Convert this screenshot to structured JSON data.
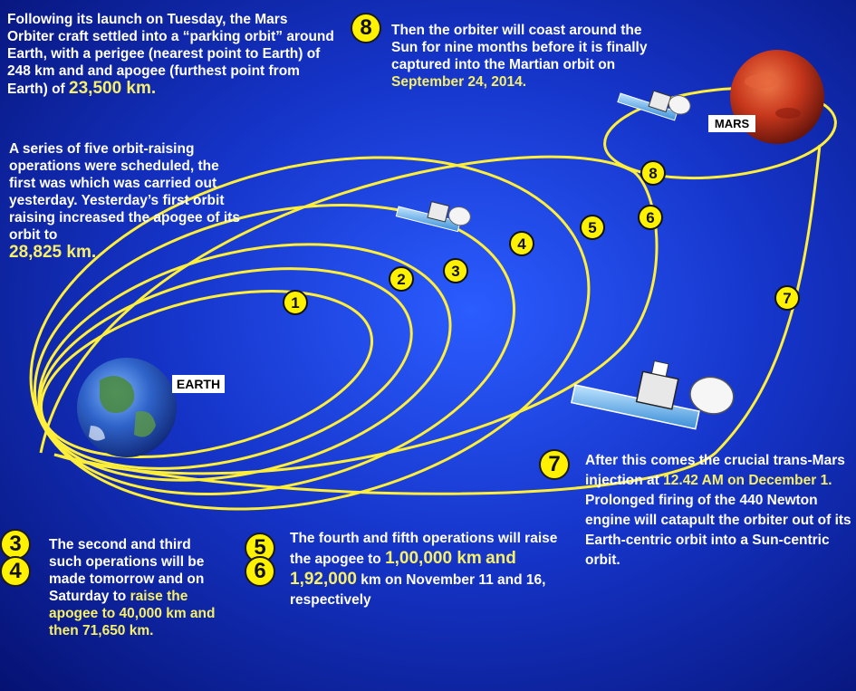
{
  "labels": {
    "earth": "EARTH",
    "mars": "MARS"
  },
  "orbit_markers": [
    "1",
    "2",
    "3",
    "4",
    "5",
    "6",
    "8",
    "7"
  ],
  "block_parking": {
    "text": "Following its launch on Tuesday, the Mars Orbiter craft settled into a “parking orbit” around Earth, with a perigee (nearest point to Earth) of 248 km and and apogee (furthest point from Earth) of",
    "value": "23,500 km."
  },
  "block_series": {
    "text": "A series of five orbit-raising operations were scheduled, the first was which was carried out yesterday. Yesterday’s first orbit raising increased the apogee of its orbit to",
    "value": "28,825 km."
  },
  "block_step8": {
    "number": "8",
    "text": "Then the orbiter will coast around the Sun for nine months before it is finally captured into the Martian orbit on",
    "value": "September 24, 2014."
  },
  "block_step34": {
    "number_a": "3",
    "number_b": "4",
    "text": "The second and third such operations will be made tomorrow and on Saturday to",
    "highlight": "raise the apogee to 40,000 km and then 71,650 km."
  },
  "block_step56": {
    "number_a": "5",
    "number_b": "6",
    "text": "The fourth and fifth operations will raise the apogee to",
    "value_a": "1,00,000 km",
    "joiner": "and",
    "value_b": "1,92,000",
    "tail": "km on November 11 and 16, respectively"
  },
  "block_step7": {
    "number": "7",
    "text_a": "After this comes the crucial trans-Mars injection at",
    "value_a": "12.42 AM on December 1.",
    "text_b": "Prolonged firing of the 440 Newton engine will catapult the orbiter out of its Earth-centric orbit into a Sun-centric orbit."
  },
  "colors": {
    "background": "#0b1fa8",
    "orbit": "#ffef3a",
    "highlight": "#f6ef6a",
    "badge": "#fff200"
  }
}
